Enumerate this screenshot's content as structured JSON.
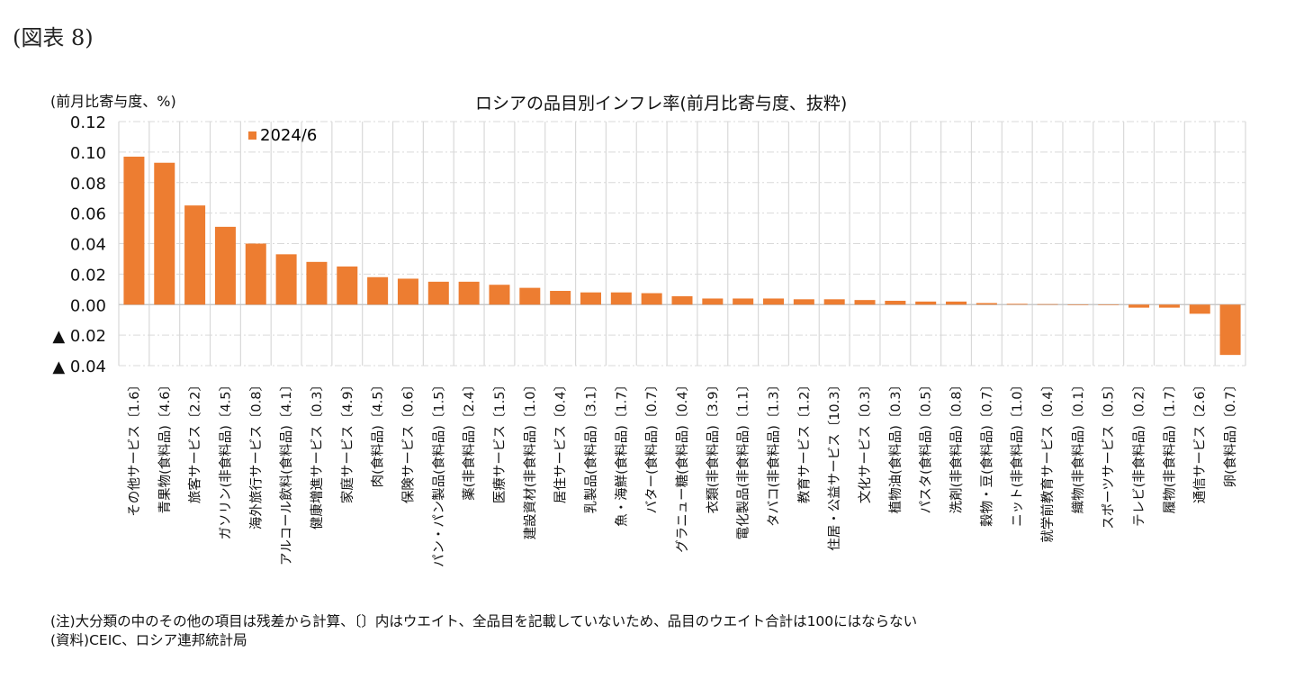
{
  "figure_label": "(図表 8)",
  "notes": {
    "note": "(注)大分類の中のその他の項目は残差から計算、〔〕内はウエイト、全品目を記載していないため、品目のウエイト合計は100にはならない",
    "source": "(資料)CEIC、ロシア連邦統計局"
  },
  "chart_data": {
    "type": "bar",
    "title": "ロシアの品目別インフレ率(前月比寄与度、抜粋)",
    "ylabel": "(前月比寄与度、%)",
    "xlabel": "",
    "ylim": [
      -0.04,
      0.12
    ],
    "yticks": [
      0.12,
      0.1,
      0.08,
      0.06,
      0.04,
      0.02,
      0.0,
      -0.02,
      -0.04
    ],
    "ytick_labels": [
      "0.12",
      "0.10",
      "0.08",
      "0.06",
      "0.04",
      "0.02",
      "0.00",
      "▲ 0.02",
      "▲ 0.04"
    ],
    "grid": true,
    "legend_position": "top-left",
    "color": "#ED7D31",
    "categories": [
      "その他サービス〔1.6〕",
      "青果物(食料品)〔4.6〕",
      "旅客サービス〔2.2〕",
      "ガソリン(非食料品)〔4.5〕",
      "海外旅行サービス〔0.8〕",
      "アルコール飲料(食料品)〔4.1〕",
      "健康増進サービス〔0.3〕",
      "家庭サービス〔4.9〕",
      "肉(食料品)〔4.5〕",
      "保険サービス〔0.6〕",
      "パン・パン製品(食料品)〔1.5〕",
      "薬(非食料品)〔2.4〕",
      "医療サービス〔1.5〕",
      "建設資材(非食料品)〔1.0〕",
      "居住サービス〔0.4〕",
      "乳製品(食料品)〔3.1〕",
      "魚・海鮮(食料品)〔1.7〕",
      "バター(食料品)〔0.7〕",
      "グラニュー糖(食料品)〔0.4〕",
      "衣類(非食料品)〔3.9〕",
      "電化製品(非食料品)〔1.1〕",
      "タバコ(非食料品)〔1.3〕",
      "教育サービス〔1.2〕",
      "住居・公益サービス〔10.3〕",
      "文化サービス〔0.3〕",
      "植物油(食料品)〔0.3〕",
      "パスタ(食料品)〔0.5〕",
      "洗剤(非食料品)〔0.8〕",
      "穀物・豆(食料品)〔0.7〕",
      "ニット(非食料品)〔1.0〕",
      "就学前教育サービス〔0.4〕",
      "織物(非食料品)〔0.1〕",
      "スポーツサービス〔0.5〕",
      "テレビ(非食料品)〔0.2〕",
      "履物(非食料品)〔1.7〕",
      "通信サービス〔2.6〕",
      "卵(食料品)〔0.7〕"
    ],
    "series": [
      {
        "name": "2024/6",
        "values": [
          0.097,
          0.093,
          0.065,
          0.051,
          0.04,
          0.033,
          0.028,
          0.025,
          0.018,
          0.017,
          0.015,
          0.015,
          0.013,
          0.011,
          0.009,
          0.008,
          0.008,
          0.0075,
          0.0055,
          0.004,
          0.004,
          0.004,
          0.0035,
          0.0035,
          0.003,
          0.0025,
          0.002,
          0.002,
          0.001,
          0.0005,
          0.0003,
          0.0,
          0.0,
          -0.002,
          -0.002,
          -0.006,
          -0.033
        ]
      }
    ]
  }
}
